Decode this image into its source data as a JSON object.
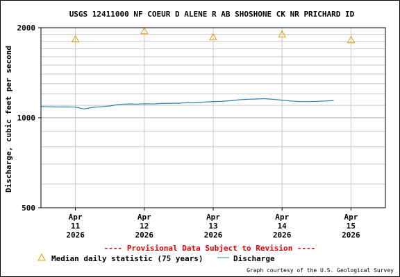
{
  "chart_data": {
    "type": "line",
    "title": "USGS 12411000 NF COEUR D ALENE R AB SHOSHONE CK NR PRICHARD ID",
    "ylabel": "Discharge, cubic feet per second",
    "yscale": "log",
    "ylim": [
      500,
      2000
    ],
    "yticks": [
      500,
      1000,
      2000
    ],
    "xlim": [
      "2026-04-10T12:00",
      "2026-04-15T12:00"
    ],
    "xticks": [
      {
        "month": "Apr",
        "day": "11",
        "year": "2026",
        "x": "2026-04-11T00:00"
      },
      {
        "month": "Apr",
        "day": "12",
        "year": "2026",
        "x": "2026-04-12T00:00"
      },
      {
        "month": "Apr",
        "day": "13",
        "year": "2026",
        "x": "2026-04-13T00:00"
      },
      {
        "month": "Apr",
        "day": "14",
        "year": "2026",
        "x": "2026-04-14T00:00"
      },
      {
        "month": "Apr",
        "day": "15",
        "year": "2026",
        "x": "2026-04-15T00:00"
      }
    ],
    "grid": true,
    "series": [
      {
        "name": "Discharge",
        "color": "#2b7fa8",
        "points": [
          [
            "2026-04-10T12:00",
            1090
          ],
          [
            "2026-04-10T15:00",
            1088
          ],
          [
            "2026-04-10T18:00",
            1086
          ],
          [
            "2026-04-10T21:00",
            1087
          ],
          [
            "2026-04-11T00:00",
            1085
          ],
          [
            "2026-04-11T03:00",
            1070
          ],
          [
            "2026-04-11T06:00",
            1083
          ],
          [
            "2026-04-11T09:00",
            1088
          ],
          [
            "2026-04-11T12:00",
            1095
          ],
          [
            "2026-04-11T15:00",
            1108
          ],
          [
            "2026-04-11T18:00",
            1112
          ],
          [
            "2026-04-11T21:00",
            1110
          ],
          [
            "2026-04-12T00:00",
            1113
          ],
          [
            "2026-04-12T03:00",
            1112
          ],
          [
            "2026-04-12T06:00",
            1116
          ],
          [
            "2026-04-12T09:00",
            1118
          ],
          [
            "2026-04-12T12:00",
            1118
          ],
          [
            "2026-04-12T15:00",
            1123
          ],
          [
            "2026-04-12T18:00",
            1122
          ],
          [
            "2026-04-12T21:00",
            1128
          ],
          [
            "2026-04-13T00:00",
            1133
          ],
          [
            "2026-04-13T03:00",
            1134
          ],
          [
            "2026-04-13T06:00",
            1140
          ],
          [
            "2026-04-13T09:00",
            1148
          ],
          [
            "2026-04-13T12:00",
            1153
          ],
          [
            "2026-04-13T15:00",
            1155
          ],
          [
            "2026-04-13T18:00",
            1158
          ],
          [
            "2026-04-13T21:00",
            1152
          ],
          [
            "2026-04-14T00:00",
            1145
          ],
          [
            "2026-04-14T03:00",
            1138
          ],
          [
            "2026-04-14T06:00",
            1133
          ],
          [
            "2026-04-14T09:00",
            1132
          ],
          [
            "2026-04-14T12:00",
            1134
          ],
          [
            "2026-04-14T15:00",
            1138
          ],
          [
            "2026-04-14T18:00",
            1142
          ]
        ]
      },
      {
        "name": "Median daily statistic (75 years)",
        "color": "#e0a000",
        "marker": "triangle",
        "points": [
          [
            "2026-04-11T00:00",
            1830
          ],
          [
            "2026-04-12T00:00",
            1950
          ],
          [
            "2026-04-13T00:00",
            1860
          ],
          [
            "2026-04-14T00:00",
            1900
          ],
          [
            "2026-04-15T00:00",
            1820
          ]
        ]
      }
    ],
    "notice": "---- Provisional Data Subject to Revision ----",
    "legend": {
      "placement": "bottom-left",
      "median_label": "Median daily statistic (75 years)",
      "discharge_label": "Discharge"
    },
    "credit": "Graph courtesy of the U.S. Geological Survey"
  }
}
